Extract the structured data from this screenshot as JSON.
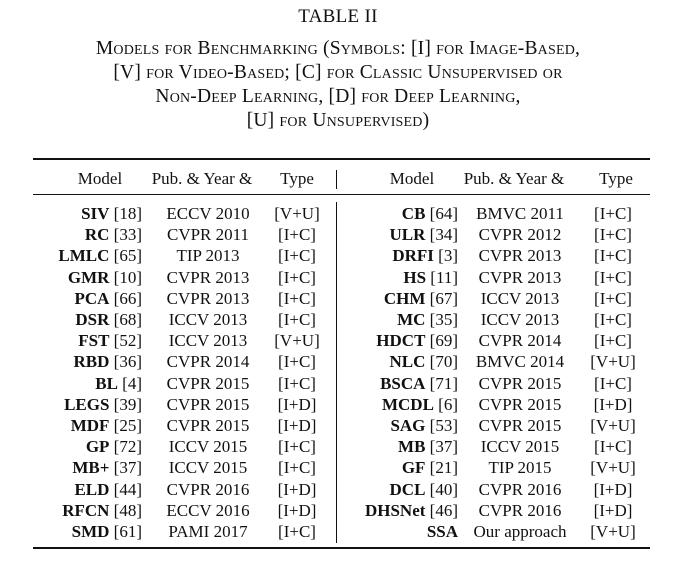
{
  "table_label": "TABLE II",
  "caption_lines": [
    "Models for Benchmarking (Symbols: [I] for Image-Based,",
    "[V] for Video-Based; [C] for Classic Unsupervised or",
    "Non-Deep Learning, [D] for Deep Learning,",
    "[U] for Unsupervised)"
  ],
  "headers": {
    "model": "Model",
    "pub_year": "Pub. & Year &",
    "type": "Type"
  },
  "left_rows": [
    {
      "model": "SIV",
      "ref": "[18]",
      "pub": "ECCV 2010",
      "type": "[V+U]"
    },
    {
      "model": "RC",
      "ref": "[33]",
      "pub": "CVPR 2011",
      "type": "[I+C]"
    },
    {
      "model": "LMLC",
      "ref": "[65]",
      "pub": "TIP 2013",
      "type": "[I+C]"
    },
    {
      "model": "GMR",
      "ref": "[10]",
      "pub": "CVPR 2013",
      "type": "[I+C]"
    },
    {
      "model": "PCA",
      "ref": "[66]",
      "pub": "CVPR 2013",
      "type": "[I+C]"
    },
    {
      "model": "DSR",
      "ref": "[68]",
      "pub": "ICCV 2013",
      "type": "[I+C]"
    },
    {
      "model": "FST",
      "ref": "[52]",
      "pub": "ICCV 2013",
      "type": "[V+U]"
    },
    {
      "model": "RBD",
      "ref": "[36]",
      "pub": "CVPR 2014",
      "type": "[I+C]"
    },
    {
      "model": "BL",
      "ref": "[4]",
      "pub": "CVPR 2015",
      "type": "[I+C]"
    },
    {
      "model": "LEGS",
      "ref": "[39]",
      "pub": "CVPR 2015",
      "type": "[I+D]"
    },
    {
      "model": "MDF",
      "ref": "[25]",
      "pub": "CVPR 2015",
      "type": "[I+D]"
    },
    {
      "model": "GP",
      "ref": "[72]",
      "pub": "ICCV 2015",
      "type": "[I+C]"
    },
    {
      "model": "MB+",
      "ref": "[37]",
      "pub": "ICCV 2015",
      "type": "[I+C]"
    },
    {
      "model": "ELD",
      "ref": "[44]",
      "pub": "CVPR 2016",
      "type": "[I+D]"
    },
    {
      "model": "RFCN",
      "ref": "[48]",
      "pub": "ECCV 2016",
      "type": "[I+D]"
    },
    {
      "model": "SMD",
      "ref": "[61]",
      "pub": "PAMI 2017",
      "type": "[I+C]"
    }
  ],
  "right_rows": [
    {
      "model": "CB",
      "ref": "[64]",
      "pub": "BMVC 2011",
      "type": "[I+C]"
    },
    {
      "model": "ULR",
      "ref": "[34]",
      "pub": "CVPR 2012",
      "type": "[I+C]"
    },
    {
      "model": "DRFI",
      "ref": "[3]",
      "pub": "CVPR 2013",
      "type": "[I+C]"
    },
    {
      "model": "HS",
      "ref": "[11]",
      "pub": "CVPR 2013",
      "type": "[I+C]"
    },
    {
      "model": "CHM",
      "ref": "[67]",
      "pub": "ICCV 2013",
      "type": "[I+C]"
    },
    {
      "model": "MC",
      "ref": "[35]",
      "pub": "ICCV 2013",
      "type": "[I+C]"
    },
    {
      "model": "HDCT",
      "ref": "[69]",
      "pub": "CVPR 2014",
      "type": "[I+C]"
    },
    {
      "model": "NLC",
      "ref": "[70]",
      "pub": "BMVC 2014",
      "type": "[V+U]"
    },
    {
      "model": "BSCA",
      "ref": "[71]",
      "pub": "CVPR 2015",
      "type": "[I+C]"
    },
    {
      "model": "MCDL",
      "ref": "[6]",
      "pub": "CVPR 2015",
      "type": "[I+D]"
    },
    {
      "model": "SAG",
      "ref": "[53]",
      "pub": "CVPR 2015",
      "type": "[V+U]"
    },
    {
      "model": "MB",
      "ref": "[37]",
      "pub": "ICCV 2015",
      "type": "[I+C]"
    },
    {
      "model": "GF",
      "ref": "[21]",
      "pub": "TIP 2015",
      "type": "[V+U]"
    },
    {
      "model": "DCL",
      "ref": "[40]",
      "pub": "CVPR 2016",
      "type": "[I+D]"
    },
    {
      "model": "DHSNet",
      "ref": "[46]",
      "pub": "CVPR 2016",
      "type": "[I+D]"
    },
    {
      "model": "SSA",
      "ref": "",
      "pub": "Our approach",
      "type": "[V+U]"
    }
  ]
}
